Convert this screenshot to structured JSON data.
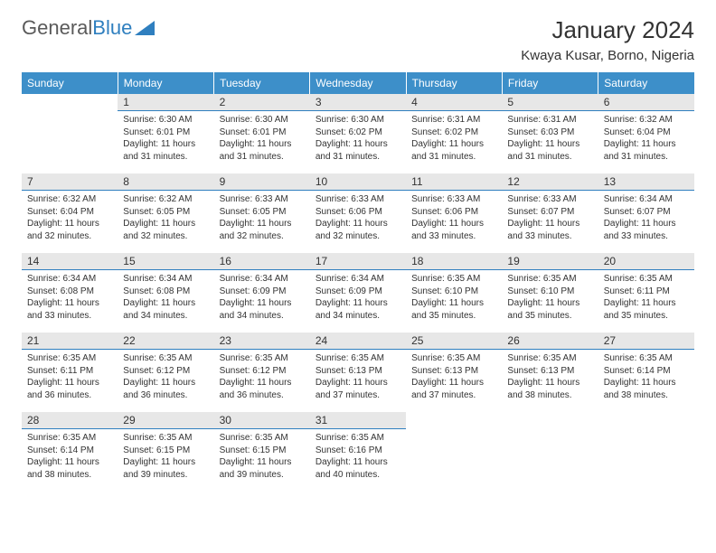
{
  "logo": {
    "part1": "General",
    "part2": "Blue"
  },
  "title": "January 2024",
  "location": "Kwaya Kusar, Borno, Nigeria",
  "colors": {
    "header_bg": "#3d8fc9",
    "header_text": "#ffffff",
    "daynum_bg": "#e7e7e7",
    "daynum_border": "#2f7fbf",
    "text": "#333333",
    "logo_gray": "#5a5a5a",
    "logo_blue": "#2f7fbf"
  },
  "weekdays": [
    "Sunday",
    "Monday",
    "Tuesday",
    "Wednesday",
    "Thursday",
    "Friday",
    "Saturday"
  ],
  "first_day_index": 1,
  "days": [
    {
      "n": 1,
      "sunrise": "6:30 AM",
      "sunset": "6:01 PM",
      "daylight": "11 hours and 31 minutes."
    },
    {
      "n": 2,
      "sunrise": "6:30 AM",
      "sunset": "6:01 PM",
      "daylight": "11 hours and 31 minutes."
    },
    {
      "n": 3,
      "sunrise": "6:30 AM",
      "sunset": "6:02 PM",
      "daylight": "11 hours and 31 minutes."
    },
    {
      "n": 4,
      "sunrise": "6:31 AM",
      "sunset": "6:02 PM",
      "daylight": "11 hours and 31 minutes."
    },
    {
      "n": 5,
      "sunrise": "6:31 AM",
      "sunset": "6:03 PM",
      "daylight": "11 hours and 31 minutes."
    },
    {
      "n": 6,
      "sunrise": "6:32 AM",
      "sunset": "6:04 PM",
      "daylight": "11 hours and 31 minutes."
    },
    {
      "n": 7,
      "sunrise": "6:32 AM",
      "sunset": "6:04 PM",
      "daylight": "11 hours and 32 minutes."
    },
    {
      "n": 8,
      "sunrise": "6:32 AM",
      "sunset": "6:05 PM",
      "daylight": "11 hours and 32 minutes."
    },
    {
      "n": 9,
      "sunrise": "6:33 AM",
      "sunset": "6:05 PM",
      "daylight": "11 hours and 32 minutes."
    },
    {
      "n": 10,
      "sunrise": "6:33 AM",
      "sunset": "6:06 PM",
      "daylight": "11 hours and 32 minutes."
    },
    {
      "n": 11,
      "sunrise": "6:33 AM",
      "sunset": "6:06 PM",
      "daylight": "11 hours and 33 minutes."
    },
    {
      "n": 12,
      "sunrise": "6:33 AM",
      "sunset": "6:07 PM",
      "daylight": "11 hours and 33 minutes."
    },
    {
      "n": 13,
      "sunrise": "6:34 AM",
      "sunset": "6:07 PM",
      "daylight": "11 hours and 33 minutes."
    },
    {
      "n": 14,
      "sunrise": "6:34 AM",
      "sunset": "6:08 PM",
      "daylight": "11 hours and 33 minutes."
    },
    {
      "n": 15,
      "sunrise": "6:34 AM",
      "sunset": "6:08 PM",
      "daylight": "11 hours and 34 minutes."
    },
    {
      "n": 16,
      "sunrise": "6:34 AM",
      "sunset": "6:09 PM",
      "daylight": "11 hours and 34 minutes."
    },
    {
      "n": 17,
      "sunrise": "6:34 AM",
      "sunset": "6:09 PM",
      "daylight": "11 hours and 34 minutes."
    },
    {
      "n": 18,
      "sunrise": "6:35 AM",
      "sunset": "6:10 PM",
      "daylight": "11 hours and 35 minutes."
    },
    {
      "n": 19,
      "sunrise": "6:35 AM",
      "sunset": "6:10 PM",
      "daylight": "11 hours and 35 minutes."
    },
    {
      "n": 20,
      "sunrise": "6:35 AM",
      "sunset": "6:11 PM",
      "daylight": "11 hours and 35 minutes."
    },
    {
      "n": 21,
      "sunrise": "6:35 AM",
      "sunset": "6:11 PM",
      "daylight": "11 hours and 36 minutes."
    },
    {
      "n": 22,
      "sunrise": "6:35 AM",
      "sunset": "6:12 PM",
      "daylight": "11 hours and 36 minutes."
    },
    {
      "n": 23,
      "sunrise": "6:35 AM",
      "sunset": "6:12 PM",
      "daylight": "11 hours and 36 minutes."
    },
    {
      "n": 24,
      "sunrise": "6:35 AM",
      "sunset": "6:13 PM",
      "daylight": "11 hours and 37 minutes."
    },
    {
      "n": 25,
      "sunrise": "6:35 AM",
      "sunset": "6:13 PM",
      "daylight": "11 hours and 37 minutes."
    },
    {
      "n": 26,
      "sunrise": "6:35 AM",
      "sunset": "6:13 PM",
      "daylight": "11 hours and 38 minutes."
    },
    {
      "n": 27,
      "sunrise": "6:35 AM",
      "sunset": "6:14 PM",
      "daylight": "11 hours and 38 minutes."
    },
    {
      "n": 28,
      "sunrise": "6:35 AM",
      "sunset": "6:14 PM",
      "daylight": "11 hours and 38 minutes."
    },
    {
      "n": 29,
      "sunrise": "6:35 AM",
      "sunset": "6:15 PM",
      "daylight": "11 hours and 39 minutes."
    },
    {
      "n": 30,
      "sunrise": "6:35 AM",
      "sunset": "6:15 PM",
      "daylight": "11 hours and 39 minutes."
    },
    {
      "n": 31,
      "sunrise": "6:35 AM",
      "sunset": "6:16 PM",
      "daylight": "11 hours and 40 minutes."
    }
  ],
  "labels": {
    "sunrise": "Sunrise:",
    "sunset": "Sunset:",
    "daylight": "Daylight:"
  }
}
